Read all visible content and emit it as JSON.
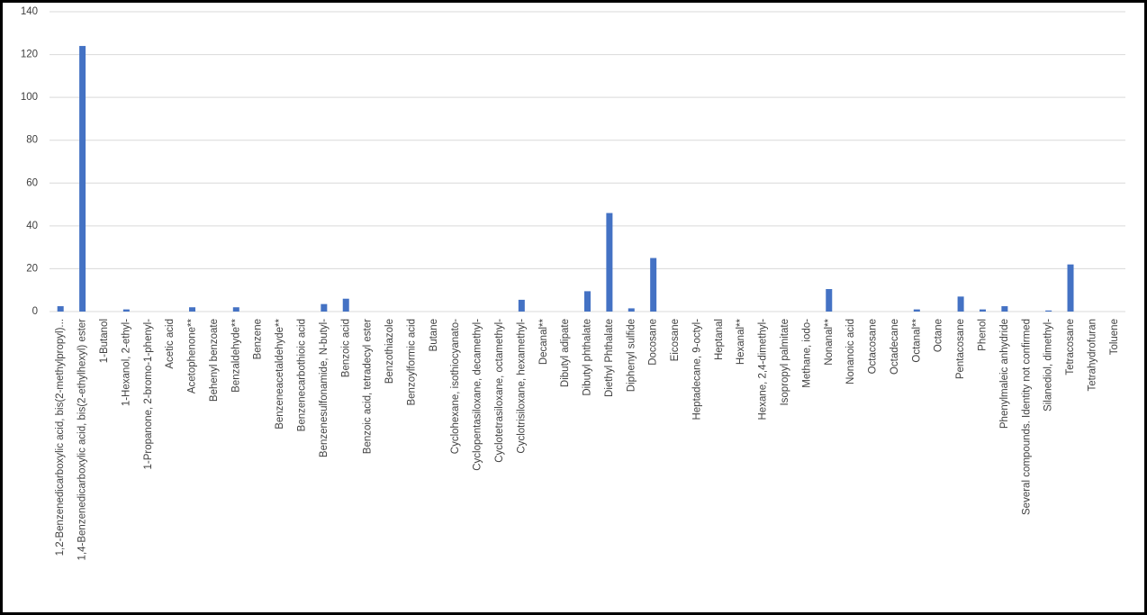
{
  "chart_data": {
    "type": "bar",
    "categories": [
      "1,2-Benzenedicarboxylic acid, bis(2-methylpropyl)...",
      "1,4-Benzenedicarboxylic acid, bis(2-ethylhexyl) ester",
      "1-Butanol",
      "1-Hexanol, 2-ethyl-",
      "1-Propanone, 2-bromo-1-phenyl-",
      "Acetic acid",
      "Acetophenone**",
      "Behenyl benzoate",
      "Benzaldehyde**",
      "Benzene",
      "Benzeneacetaldehyde**",
      "Benzenecarbothioic acid",
      "Benzenesulfonamide, N-butyl-",
      "Benzoic acid",
      "Benzoic acid, tetradecyl ester",
      "Benzothiazole",
      "Benzoylformic acid",
      "Butane",
      "Cyclohexane, isothiocyanato-",
      "Cyclopentasiloxane, decamethyl-",
      "Cyclotetrasiloxane, octamethyl-",
      "Cyclotrisiloxane, hexamethyl-",
      "Decanal**",
      "Dibutyl adipate",
      "Dibutyl phthalate",
      "Diethyl Phthalate",
      "Diphenyl sulfide",
      "Docosane",
      "Eicosane",
      "Heptadecane, 9-octyl-",
      "Heptanal",
      "Hexanal**",
      "Hexane, 2,4-dimethyl-",
      "Isopropyl palmitate",
      "Methane, iodo-",
      "Nonanal**",
      "Nonanoic acid",
      "Octacosane",
      "Octadecane",
      "Octanal**",
      "Octane",
      "Pentacosane",
      "Phenol",
      "Phenylmaleic anhydride",
      "Several compounds. Identity not confirmed",
      "Silanediol, dimethyl-",
      "Tetracosane",
      "Tetrahydrofuran",
      "Toluene"
    ],
    "values": [
      2.5,
      124,
      0,
      1,
      0,
      0,
      2,
      0,
      2,
      0,
      0,
      0,
      3.5,
      6,
      0,
      0,
      0,
      0,
      0,
      0,
      0,
      5.5,
      0,
      0,
      9.5,
      46,
      1.5,
      25,
      0,
      0,
      0,
      0,
      0,
      0,
      0,
      10.5,
      0,
      0,
      0,
      1,
      0,
      7,
      1,
      2.5,
      0,
      0.5,
      22,
      0,
      0
    ],
    "color": "#4472c4",
    "ylim": [
      0,
      140
    ],
    "yticks": [
      0,
      20,
      40,
      60,
      80,
      100,
      120,
      140
    ],
    "grid": true
  }
}
